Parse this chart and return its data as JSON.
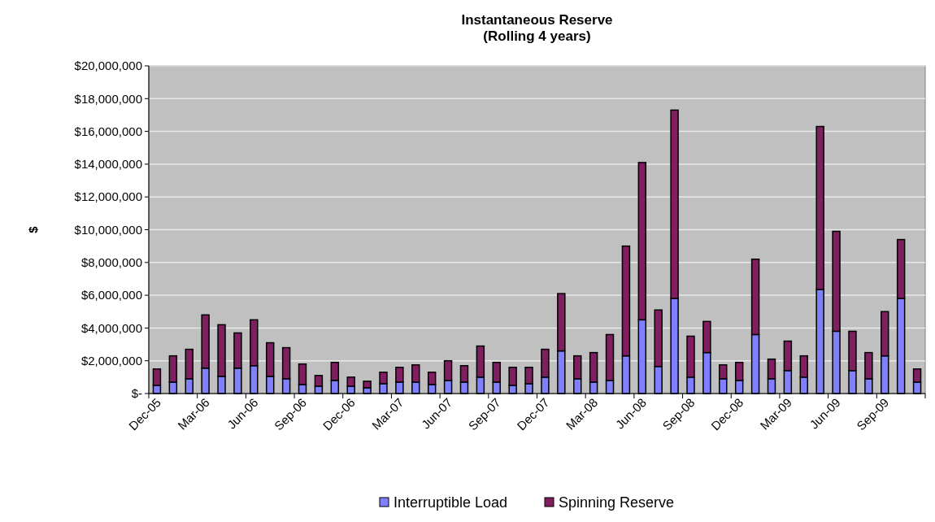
{
  "chart_data": {
    "type": "bar",
    "title": "Instantaneous Reserve\n(Rolling 4 years)",
    "ylabel": "$",
    "stacked": true,
    "grid": "y",
    "legend": "bottom",
    "categories": [
      "Dec-05",
      null,
      null,
      "Mar-06",
      null,
      null,
      "Jun-06",
      null,
      null,
      "Sep-06",
      null,
      null,
      "Dec-06",
      null,
      null,
      "Mar-07",
      null,
      null,
      "Jun-07",
      null,
      null,
      "Sep-07",
      null,
      null,
      "Dec-07",
      null,
      null,
      "Mar-08",
      null,
      null,
      "Jun-08",
      null,
      null,
      "Sep-08",
      null,
      null,
      "Dec-08",
      null,
      null,
      "Mar-09",
      null,
      null,
      "Jun-09",
      null,
      null,
      "Sep-09",
      null,
      null
    ],
    "series": [
      {
        "name": "Interruptible Load",
        "color": "#8080ff",
        "values": [
          500000,
          700000,
          900000,
          1550000,
          1050000,
          1550000,
          1700000,
          1050000,
          900000,
          550000,
          450000,
          800000,
          450000,
          350000,
          600000,
          700000,
          700000,
          550000,
          800000,
          700000,
          1000000,
          700000,
          500000,
          600000,
          1000000,
          2600000,
          900000,
          700000,
          800000,
          2300000,
          4500000,
          1650000,
          5800000,
          1000000,
          2500000,
          900000,
          800000,
          3600000,
          900000,
          1400000,
          1000000,
          6350000,
          3800000,
          1400000,
          900000,
          2300000,
          5800000,
          700000
        ]
      },
      {
        "name": "Spinning Reserve",
        "color": "#801f5f",
        "values": [
          1000000,
          1600000,
          1800000,
          3250000,
          3150000,
          2150000,
          2800000,
          2050000,
          1900000,
          1250000,
          650000,
          1100000,
          550000,
          400000,
          700000,
          900000,
          1050000,
          750000,
          1200000,
          1000000,
          1900000,
          1200000,
          1100000,
          1000000,
          1700000,
          3500000,
          1400000,
          1800000,
          2800000,
          6700000,
          9600000,
          3450000,
          11500000,
          2500000,
          1900000,
          850000,
          1100000,
          4600000,
          1200000,
          1800000,
          1300000,
          9950000,
          6100000,
          2400000,
          1600000,
          2700000,
          3600000,
          800000
        ]
      }
    ],
    "ylim": [
      0,
      20000000
    ],
    "yticks": [
      {
        "value": 0,
        "label": "$-"
      },
      {
        "value": 2000000,
        "label": "$2,000,000"
      },
      {
        "value": 4000000,
        "label": "$4,000,000"
      },
      {
        "value": 6000000,
        "label": "$6,000,000"
      },
      {
        "value": 8000000,
        "label": "$8,000,000"
      },
      {
        "value": 10000000,
        "label": "$10,000,000"
      },
      {
        "value": 12000000,
        "label": "$12,000,000"
      },
      {
        "value": 14000000,
        "label": "$14,000,000"
      },
      {
        "value": 16000000,
        "label": "$16,000,000"
      },
      {
        "value": 18000000,
        "label": "$18,000,000"
      },
      {
        "value": 20000000,
        "label": "$20,000,000"
      }
    ]
  }
}
